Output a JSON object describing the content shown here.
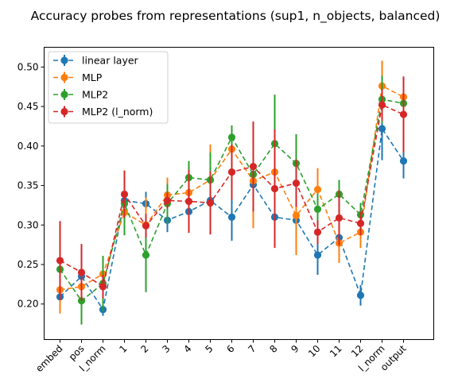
{
  "chart_data": {
    "type": "line",
    "title": "Accuracy probes from representations (sup1, n_objects, balanced)",
    "xlabel": "",
    "ylabel": "",
    "categories": [
      "embed",
      "pos",
      "l_norm",
      "1",
      "2",
      "3",
      "4",
      "5",
      "6",
      "7",
      "8",
      "9",
      "10",
      "11",
      "12",
      "l_norm",
      "output"
    ],
    "ylim": [
      0.155,
      0.525
    ],
    "yticks": [
      0.2,
      0.25,
      0.3,
      0.35,
      0.4,
      0.45,
      0.5
    ],
    "ytick_labels": [
      "0.20",
      "0.25",
      "0.30",
      "0.35",
      "0.40",
      "0.45",
      "0.50"
    ],
    "grid": false,
    "legend_position": "top-left",
    "line_style": "dashed",
    "marker": "circle",
    "error_bars": true,
    "series": [
      {
        "name": "linear layer",
        "color": "#1f77b4",
        "values": [
          0.209,
          0.235,
          0.193,
          0.331,
          0.327,
          0.306,
          0.317,
          0.331,
          0.31,
          0.351,
          0.31,
          0.306,
          0.262,
          0.284,
          0.211,
          0.422,
          0.381
        ],
        "errors": [
          0.012,
          0.01,
          0.008,
          0.012,
          0.015,
          0.015,
          0.018,
          0.04,
          0.03,
          0.035,
          0.03,
          0.04,
          0.025,
          0.02,
          0.013,
          0.04,
          0.022
        ]
      },
      {
        "name": "MLP",
        "color": "#ff7f0e",
        "values": [
          0.218,
          0.222,
          0.238,
          0.316,
          0.3,
          0.338,
          0.341,
          0.357,
          0.396,
          0.356,
          0.367,
          0.312,
          0.345,
          0.277,
          0.291,
          0.476,
          0.462
        ],
        "errors": [
          0.03,
          0.02,
          0.02,
          0.025,
          0.035,
          0.022,
          0.03,
          0.045,
          0.03,
          0.06,
          0.05,
          0.05,
          0.027,
          0.025,
          0.02,
          0.032,
          0.025
        ]
      },
      {
        "name": "MLP2",
        "color": "#2ca02c",
        "values": [
          0.244,
          0.204,
          0.226,
          0.327,
          0.262,
          0.327,
          0.36,
          0.357,
          0.411,
          0.364,
          0.403,
          0.378,
          0.32,
          0.339,
          0.313,
          0.459,
          0.454
        ],
        "errors": [
          0.015,
          0.03,
          0.035,
          0.04,
          0.047,
          0.025,
          0.021,
          0.035,
          0.015,
          0.02,
          0.062,
          0.037,
          0.02,
          0.018,
          0.015,
          0.03,
          0.03
        ]
      },
      {
        "name": "MLP2 (l_norm)",
        "color": "#d62728",
        "values": [
          0.255,
          0.24,
          0.222,
          0.339,
          0.299,
          0.331,
          0.33,
          0.328,
          0.367,
          0.374,
          0.346,
          0.353,
          0.291,
          0.309,
          0.302,
          0.452,
          0.44
        ],
        "errors": [
          0.05,
          0.036,
          0.015,
          0.03,
          0.015,
          0.01,
          0.04,
          0.04,
          0.035,
          0.057,
          0.075,
          0.03,
          0.015,
          0.035,
          0.015,
          0.02,
          0.048
        ]
      }
    ]
  }
}
